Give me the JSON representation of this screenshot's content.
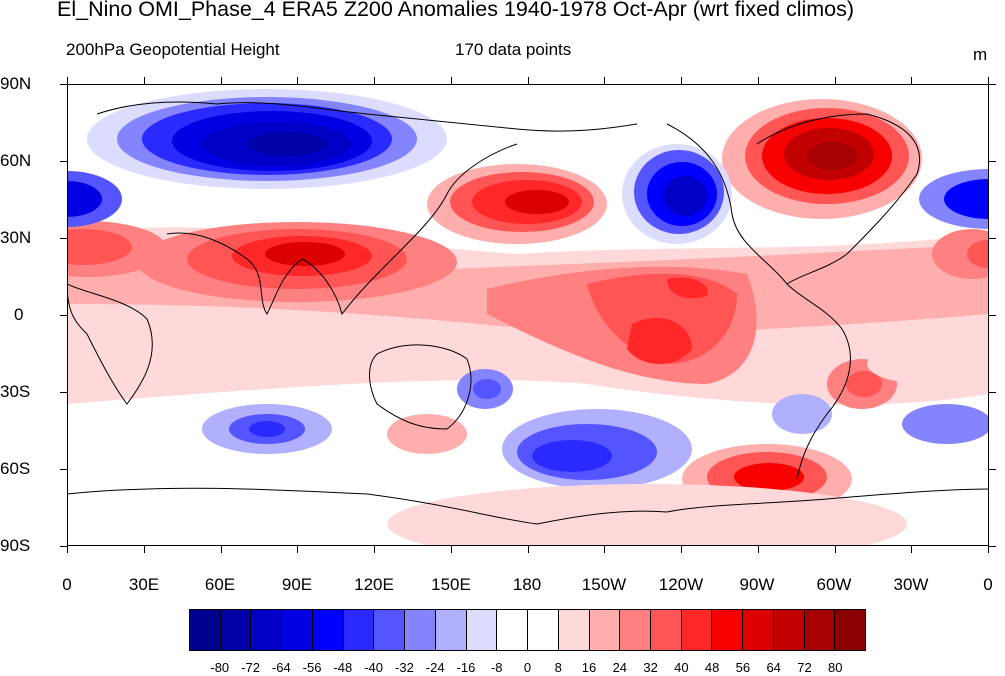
{
  "title": "El_Nino OMI_Phase_4 ERA5 Z200 Anomalies 1940-1978 Oct-Apr (wrt fixed climos)",
  "subtitle_left": "200hPa Geopotential Height",
  "subtitle_center": "170 data points",
  "units": "m",
  "y_axis_labels": [
    "90N",
    "60N",
    "30N",
    "0",
    "30S",
    "60S",
    "90S"
  ],
  "x_axis_labels": [
    "0",
    "30E",
    "60E",
    "90E",
    "120E",
    "150E",
    "180",
    "150W",
    "120W",
    "90W",
    "60W",
    "30W",
    "0"
  ],
  "colorbar_labels": [
    "-80",
    "-72",
    "-64",
    "-56",
    "-48",
    "-40",
    "-32",
    "-24",
    "-16",
    "-8",
    "0",
    "8",
    "16",
    "24",
    "32",
    "40",
    "48",
    "56",
    "64",
    "72",
    "80"
  ],
  "colors": {
    "palette": [
      "#00008f",
      "#0000a9",
      "#0000c6",
      "#0000e2",
      "#0000ff",
      "#2a2aff",
      "#5555ff",
      "#8484ff",
      "#b0b0ff",
      "#dcdcff",
      "#ffffff",
      "#ffffff",
      "#ffd9d9",
      "#ffaeae",
      "#ff8080",
      "#ff5555",
      "#ff2727",
      "#f70000",
      "#dc0000",
      "#c10000",
      "#a60000",
      "#8b0000"
    ]
  }
}
